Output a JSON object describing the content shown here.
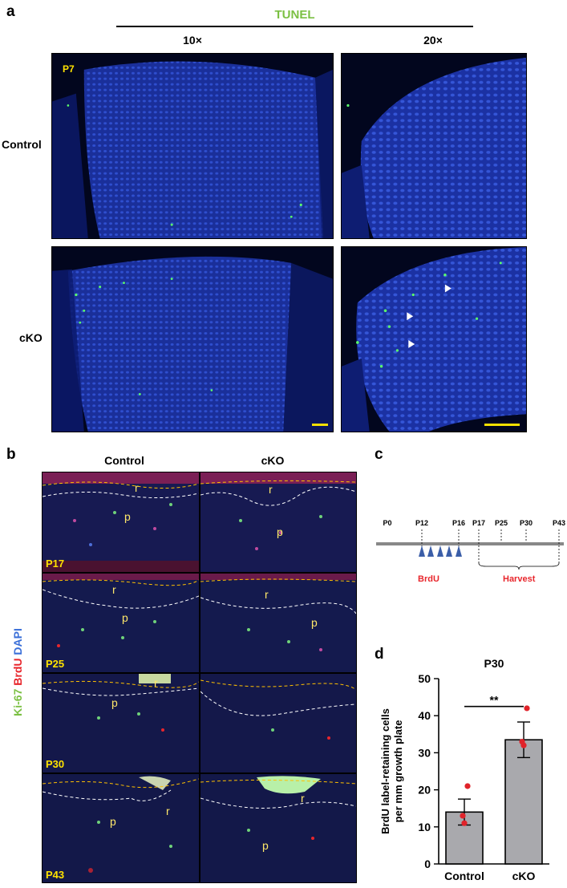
{
  "panel_a": {
    "letter": "a",
    "title": "TUNEL",
    "col_headers": [
      "10×",
      "20×"
    ],
    "row_labels": [
      "Control",
      "cKO"
    ],
    "stage_label": "P7",
    "title_color": "#7bc043"
  },
  "panel_b": {
    "letter": "b",
    "col_headers": [
      "Control",
      "cKO"
    ],
    "side_label": {
      "ki67": "Ki-67",
      "brdu": "BrdU",
      "dapi": "DAPI"
    },
    "side_colors": {
      "ki67": "#7bc043",
      "brdu": "#e8262c",
      "dapi": "#3a6fd8"
    },
    "stages": [
      "P17",
      "P25",
      "P30",
      "P43"
    ],
    "zone_r": "r",
    "zone_p": "p"
  },
  "panel_c": {
    "letter": "c",
    "timepoints": [
      "P0",
      "P12",
      "P16",
      "P17",
      "P25",
      "P30",
      "P43"
    ],
    "brdu_label": "BrdU",
    "harvest_label": "Harvest",
    "label_color": "#e8262c"
  },
  "panel_d": {
    "letter": "d",
    "chart_data": {
      "type": "bar",
      "title": "P30",
      "categories": [
        "Control",
        "cKO"
      ],
      "values": [
        14,
        33.5
      ],
      "errors": [
        3.5,
        4.8
      ],
      "points": [
        [
          11,
          13,
          21
        ],
        [
          32,
          33,
          42
        ]
      ],
      "ylabel_lines": [
        "BrdU label-retaining cells",
        "per mm growth plate"
      ],
      "ylim": [
        0,
        50
      ],
      "yticks": [
        0,
        10,
        20,
        30,
        40,
        50
      ],
      "significance": "**",
      "bar_color": "#a9a9ad",
      "point_color": "#e0232a"
    }
  }
}
